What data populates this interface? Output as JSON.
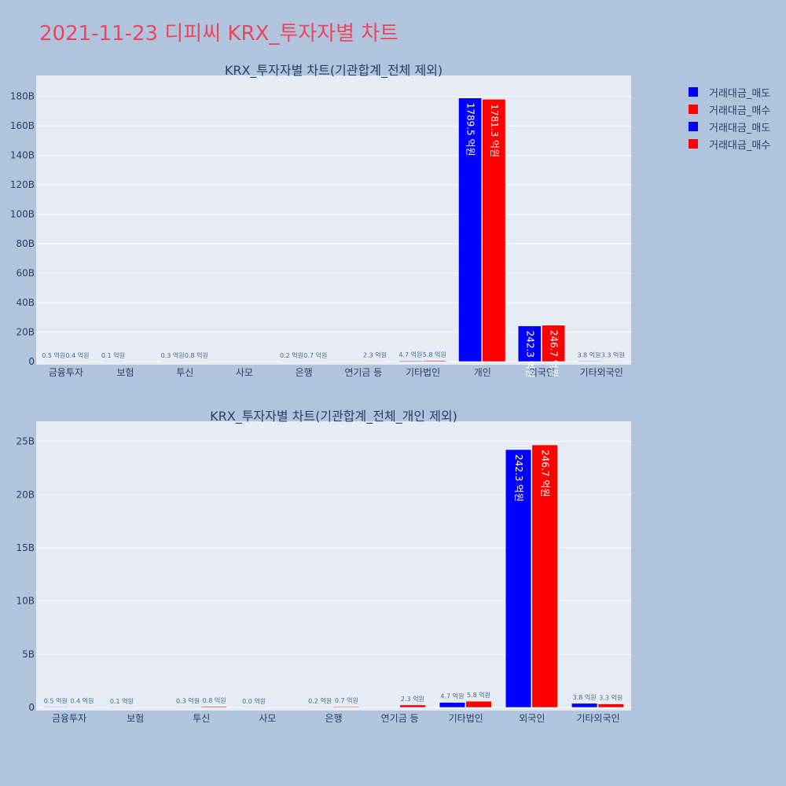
{
  "title": "2021-11-23 디피씨 KRX_투자자별 차트",
  "legend": [
    {
      "name": "거래대금_매도",
      "color": "#0000ff"
    },
    {
      "name": "거래대금_매수",
      "color": "#ff0000"
    },
    {
      "name": "거래대금_매도",
      "color": "#0000ff"
    },
    {
      "name": "거래대금_매수",
      "color": "#ff0000"
    }
  ],
  "colors": {
    "sell": "#0000ff",
    "buy": "#ff0000"
  },
  "chart_data": [
    {
      "type": "bar",
      "title": "KRX_투자자별 차트(기관합계_전체 제외)",
      "categories": [
        "금융투자",
        "보험",
        "투신",
        "사모",
        "은행",
        "연기금 등",
        "기타법인",
        "개인",
        "외국인",
        "기타외국인"
      ],
      "ylim": [
        0,
        190
      ],
      "yticks": [
        0,
        20,
        40,
        60,
        80,
        100,
        120,
        140,
        160,
        180
      ],
      "ytick_labels": [
        "0",
        "20B",
        "40B",
        "60B",
        "80B",
        "100B",
        "120B",
        "140B",
        "160B",
        "180B"
      ],
      "grid": true,
      "series": [
        {
          "name": "거래대금_매도",
          "color": "#0000ff",
          "values": [
            0.05,
            0.01,
            0.03,
            null,
            0.02,
            null,
            0.47,
            178.95,
            24.23,
            0.38
          ],
          "labels": [
            "0.5 억원",
            "0.1 억원",
            "0.3 억원",
            "",
            "0.2 억원",
            "",
            "4.7 억원",
            "1789.5 억원",
            "242.3 억원",
            "3.8 억원"
          ]
        },
        {
          "name": "거래대금_매수",
          "color": "#ff0000",
          "values": [
            0.04,
            null,
            0.08,
            null,
            0.07,
            0.23,
            0.58,
            178.13,
            24.67,
            0.33
          ],
          "labels": [
            "0.4 억원",
            "",
            "0.8 억원",
            "",
            "0.7 억원",
            "2.3 억원",
            "5.8 억원",
            "1781.3 억원",
            "246.7 억원",
            "3.3 억원"
          ]
        }
      ]
    },
    {
      "type": "bar",
      "title": "KRX_투자자별 차트(기관합계_전체_개인 제외)",
      "categories": [
        "금융투자",
        "보험",
        "투신",
        "사모",
        "은행",
        "연기금 등",
        "기타법인",
        "외국인",
        "기타외국인"
      ],
      "ylim": [
        0,
        26.3
      ],
      "yticks": [
        0,
        5,
        10,
        15,
        20,
        25
      ],
      "ytick_labels": [
        "0",
        "5B",
        "10B",
        "15B",
        "20B",
        "25B"
      ],
      "grid": true,
      "series": [
        {
          "name": "거래대금_매도",
          "color": "#0000ff",
          "values": [
            0.05,
            0.01,
            0.03,
            0.0,
            0.02,
            null,
            0.47,
            24.23,
            0.38
          ],
          "labels": [
            "0.5 억원",
            "0.1 억원",
            "0.3 억원",
            "0.0 억원",
            "0.2 억원",
            "",
            "4.7 억원",
            "242.3 억원",
            "3.8 억원"
          ]
        },
        {
          "name": "거래대금_매수",
          "color": "#ff0000",
          "values": [
            0.04,
            null,
            0.08,
            null,
            0.07,
            0.23,
            0.58,
            24.67,
            0.33
          ],
          "labels": [
            "0.4 억원",
            "",
            "0.8 억원",
            "",
            "0.7 억원",
            "2.3 억원",
            "5.8 억원",
            "246.7 억원",
            "3.3 억원"
          ]
        }
      ]
    }
  ]
}
